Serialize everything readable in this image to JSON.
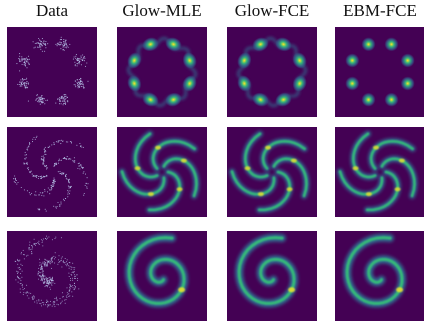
{
  "columns": [
    {
      "id": "data",
      "label": "Data"
    },
    {
      "id": "glow-mle",
      "label": "Glow-MLE"
    },
    {
      "id": "glow-fce",
      "label": "Glow-FCE"
    },
    {
      "id": "ebm-fce",
      "label": "EBM-FCE"
    }
  ],
  "rows": [
    {
      "id": "gaussian-ring",
      "label": ""
    },
    {
      "id": "pinwheel",
      "label": ""
    },
    {
      "id": "spiral",
      "label": ""
    }
  ],
  "colors": {
    "background": "#440154",
    "low": "#31688e",
    "mid": "#35b779",
    "high": "#fde725",
    "sample": "#b9c6ea"
  }
}
